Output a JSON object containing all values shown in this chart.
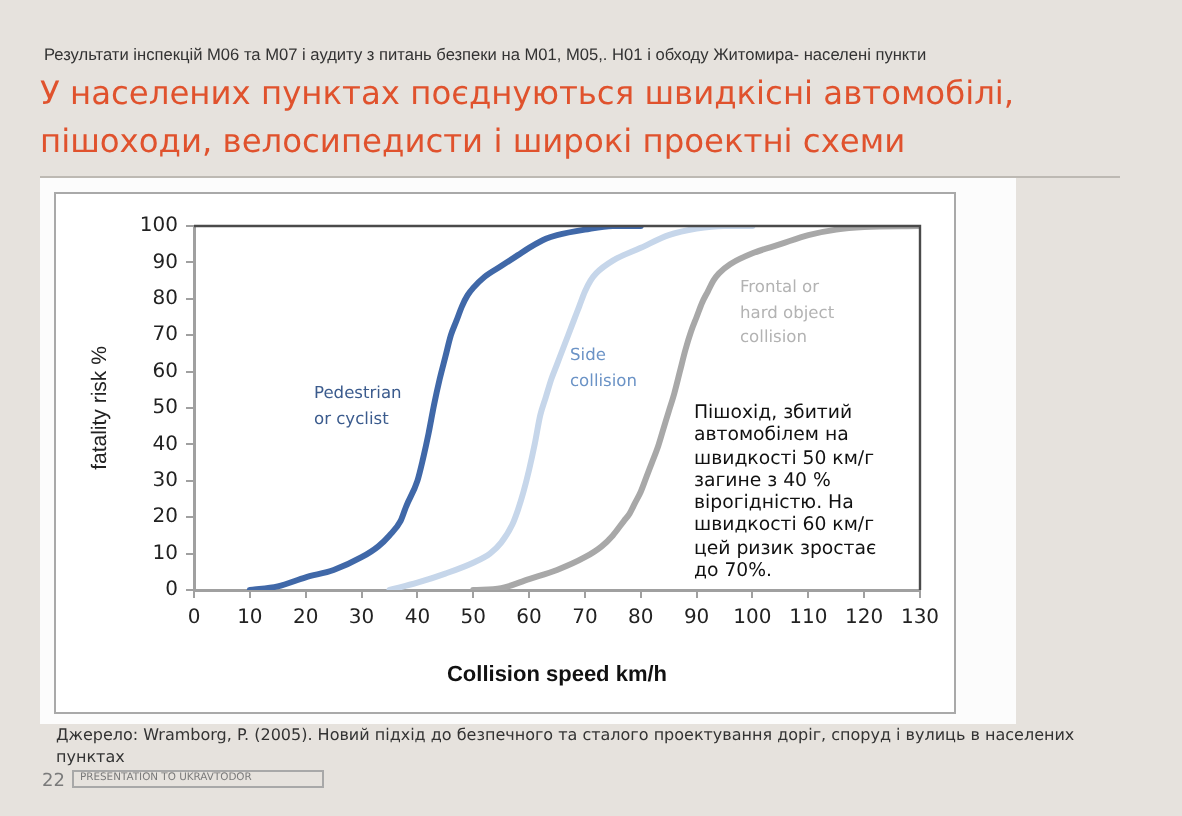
{
  "chart_data": {
    "type": "line",
    "subtitle": "Результати інспекцій М06 та М07 і аудиту з питань безпеки  на М01, М05,. Н01 і обходу Житомира- населені пункти",
    "title": "У населених пунктах поєднуються швидкісні автомобілі, пішоходи, велосипедисти і широкі проектні схеми",
    "xlabel": "Collision speed km/h",
    "ylabel": "fatality risk %",
    "xlim": [
      0,
      130
    ],
    "xticks": [
      0,
      10,
      20,
      30,
      40,
      50,
      60,
      70,
      80,
      90,
      100,
      110,
      120,
      130
    ],
    "ylim": [
      0,
      100
    ],
    "yticks": [
      0,
      10,
      20,
      30,
      40,
      50,
      60,
      70,
      80,
      90,
      100
    ],
    "grid": false,
    "legend": false,
    "marker": "none",
    "line_style": "solid",
    "series": [
      {
        "name": "Pedestrian or cyclist",
        "color": "#4068a8",
        "x": [
          10,
          15,
          20,
          25,
          30,
          33,
          35,
          37,
          38,
          40,
          41,
          42,
          43,
          44,
          45,
          46,
          47,
          48,
          49,
          50,
          52,
          55,
          58,
          60,
          63,
          65,
          70,
          75,
          80
        ],
        "values": [
          0,
          1,
          3.5,
          5.5,
          9,
          12,
          15,
          19,
          23,
          30,
          36,
          43,
          51,
          58,
          64,
          70,
          74,
          78,
          81,
          83,
          86,
          89,
          92,
          94,
          96.5,
          97.5,
          99,
          100,
          100
        ]
      },
      {
        "name": "Side collision",
        "color": "#c6d6ea",
        "x": [
          35,
          40,
          45,
          50,
          53,
          55,
          57,
          58,
          59,
          60,
          61,
          62,
          63,
          64,
          65,
          66,
          67,
          68,
          69,
          70,
          71,
          72,
          75,
          80,
          85,
          90,
          95,
          100
        ],
        "values": [
          0,
          2,
          4.5,
          7.5,
          10,
          13,
          18,
          22,
          27,
          33,
          40,
          48,
          53,
          58,
          62,
          66,
          70,
          74,
          78,
          82,
          85,
          87,
          90.5,
          94,
          97.5,
          99.3,
          100,
          100
        ]
      },
      {
        "name": "Frontal or hard object collision",
        "color": "#a8a8a8",
        "x": [
          50,
          55,
          60,
          65,
          70,
          73,
          75,
          77,
          78,
          79,
          80,
          81,
          82,
          83,
          84,
          85,
          86,
          87,
          88,
          89,
          90,
          91,
          92,
          93,
          94,
          96,
          100,
          105,
          110,
          115,
          120,
          130
        ],
        "values": [
          0,
          0.5,
          3,
          5.5,
          9,
          12,
          15,
          19,
          21,
          24,
          27,
          31,
          35,
          39,
          44,
          49,
          54,
          60,
          66,
          71,
          75,
          79,
          82,
          85,
          87,
          89.5,
          92.5,
          95,
          97.5,
          99,
          99.7,
          100
        ]
      }
    ],
    "annotations": [
      "Пішохід, збитий автомобілем на швидкості 50 км/г загине з 40 % вірогідністю. На швидкості 60 км/г цей ризик зростає до 70%.",
      "Джерело: Wramborg, P. (2005). Новий підхід до безпечного та сталого проектування доріг, споруд і вулиць в населених пунктах",
      "22",
      "PRESENTATION TO UKRAVTODOR"
    ]
  }
}
